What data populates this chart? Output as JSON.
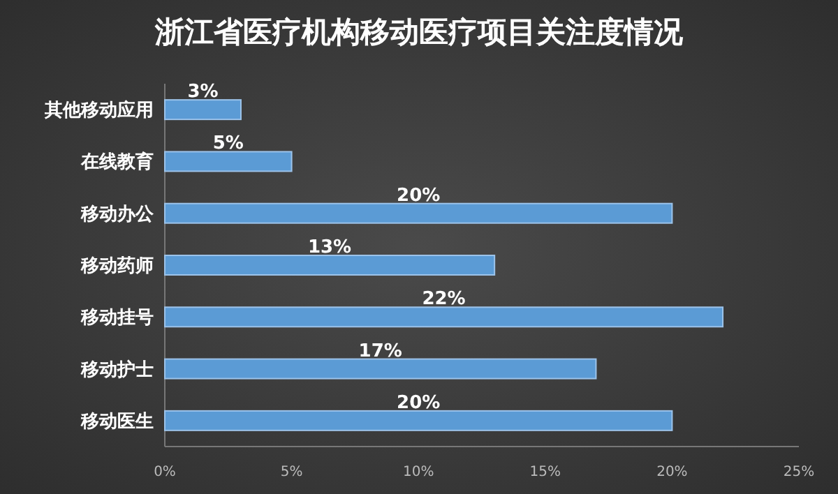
{
  "chart_data": {
    "type": "bar",
    "orientation": "horizontal",
    "title": "浙江省医疗机构移动医疗项目关注度情况",
    "categories": [
      "其他移动应用",
      "在线教育",
      "移动办公",
      "移动药师",
      "移动挂号",
      "移动护士",
      "移动医生"
    ],
    "values": [
      3,
      5,
      20,
      13,
      22,
      17,
      20
    ],
    "value_labels": [
      "3%",
      "5%",
      "20%",
      "13%",
      "22%",
      "17%",
      "20%"
    ],
    "color": "#5b9bd5",
    "xlim": [
      0,
      25
    ],
    "xticks": [
      {
        "value": 0,
        "label": "0%"
      },
      {
        "value": 5,
        "label": "5%"
      },
      {
        "value": 10,
        "label": "10%"
      },
      {
        "value": 15,
        "label": "15%"
      },
      {
        "value": 20,
        "label": "20%"
      },
      {
        "value": 25,
        "label": "25%"
      }
    ],
    "grid": false
  }
}
